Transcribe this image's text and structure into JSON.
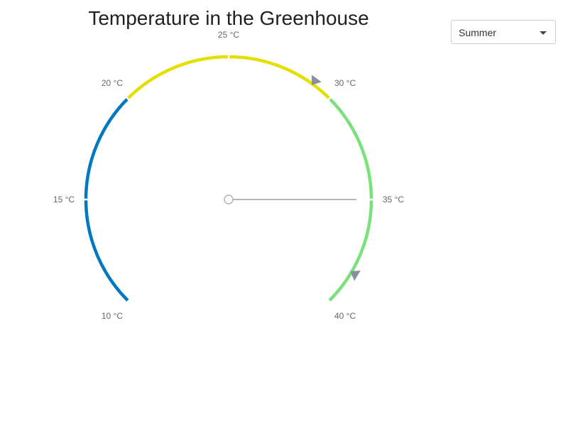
{
  "title": "Temperature in the Greenhouse",
  "dropdown": {
    "selected": "Summer"
  },
  "chart_data": {
    "type": "gauge",
    "title": "Temperature in the Greenhouse",
    "unit": "°C",
    "min": 10,
    "max": 40,
    "value": 35,
    "ticks": [
      {
        "value": 10,
        "label": "10 °C"
      },
      {
        "value": 15,
        "label": "15 °C"
      },
      {
        "value": 20,
        "label": "20 °C"
      },
      {
        "value": 25,
        "label": "25 °C"
      },
      {
        "value": 30,
        "label": "30 °C"
      },
      {
        "value": 35,
        "label": "35 °C"
      },
      {
        "value": 40,
        "label": "40 °C"
      }
    ],
    "bands": [
      {
        "from": 10,
        "to": 20,
        "color": "#0079c1"
      },
      {
        "from": 20,
        "to": 30,
        "color": "#e3e000"
      },
      {
        "from": 30,
        "to": 40,
        "color": "#7ce07c"
      }
    ],
    "markers": [
      {
        "value": 29
      },
      {
        "value": 38.4
      }
    ],
    "marker_color": "#8a8f99",
    "needle_color": "#b5b5b5"
  }
}
